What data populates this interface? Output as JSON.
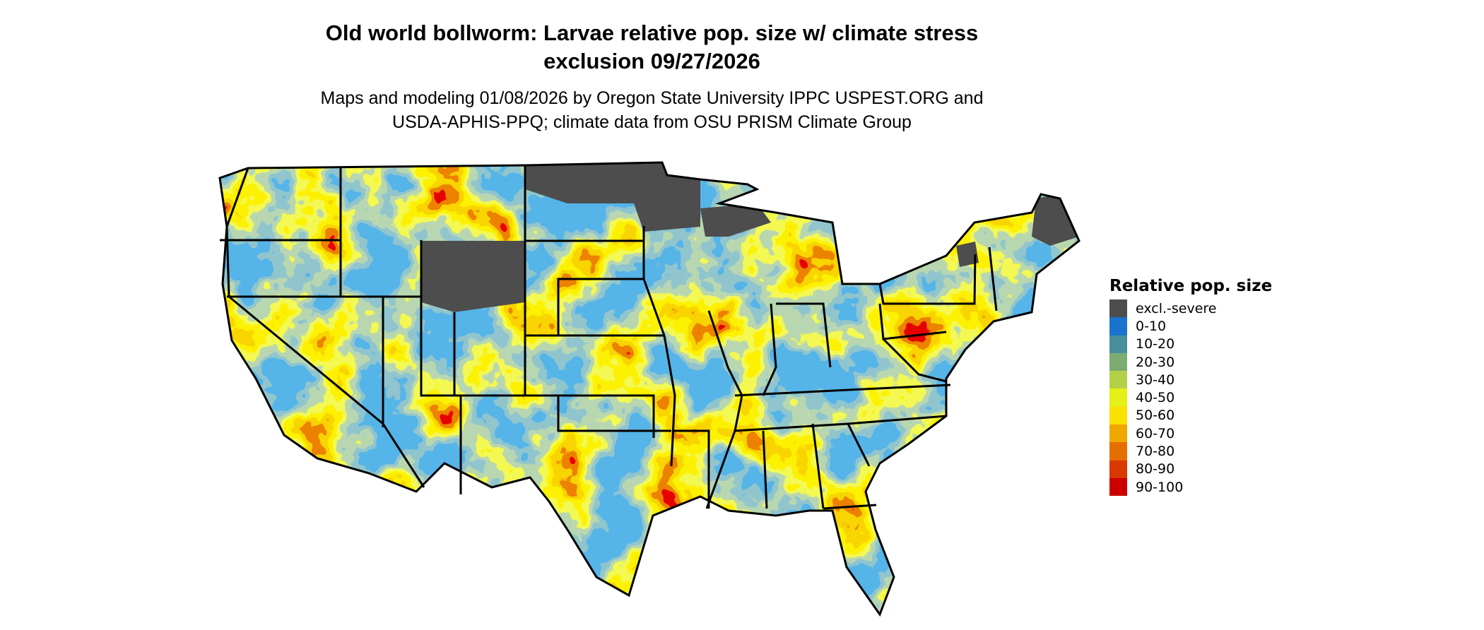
{
  "title": {
    "line1": "Old world bollworm: Larvae relative pop. size w/ climate stress",
    "line2": "exclusion 09/27/2026"
  },
  "subtitle": {
    "line1": "Maps and modeling 01/08/2026 by Oregon State University IPPC USPEST.ORG and",
    "line2": "USDA-APHIS-PPQ; climate data from OSU PRISM Climate Group"
  },
  "map": {
    "region": "contiguous United States",
    "dominant_category": "0-10",
    "excluded_color": "#4d4d4d",
    "border_color": "#000000"
  },
  "legend": {
    "title": "Relative pop. size",
    "items": [
      {
        "label": "excl.-severe",
        "color": "#4d4d4d"
      },
      {
        "label": "0-10",
        "color": "#1874cd"
      },
      {
        "label": "10-20",
        "color": "#488f9e"
      },
      {
        "label": "20-30",
        "color": "#7bad70"
      },
      {
        "label": "30-40",
        "color": "#b2d147"
      },
      {
        "label": "40-50",
        "color": "#e5f016"
      },
      {
        "label": "50-60",
        "color": "#fae100"
      },
      {
        "label": "60-70",
        "color": "#f0a800"
      },
      {
        "label": "70-80",
        "color": "#e46f00"
      },
      {
        "label": "80-90",
        "color": "#d93800"
      },
      {
        "label": "90-100",
        "color": "#cc0000"
      }
    ]
  }
}
